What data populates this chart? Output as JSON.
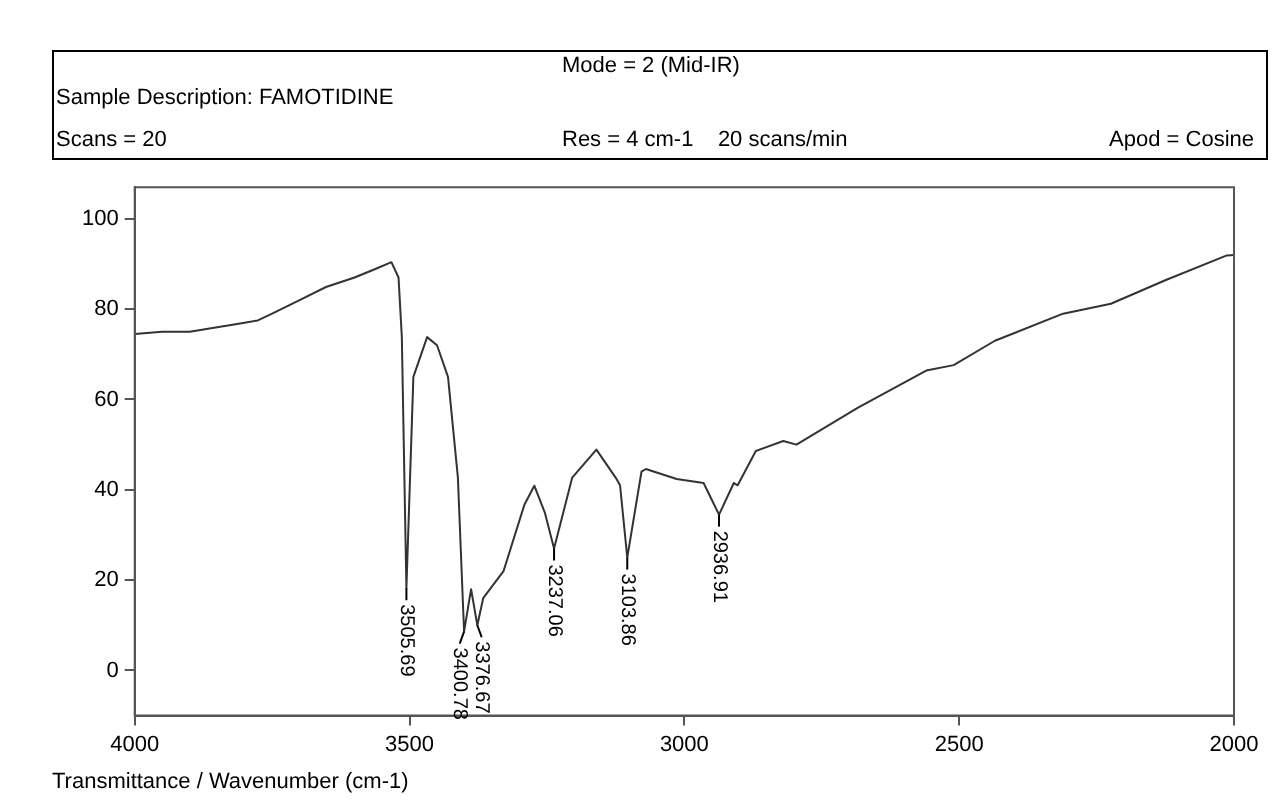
{
  "chart_data": {
    "type": "line",
    "title": "Mode = 2 (Mid-IR)",
    "xlabel": "Transmittance / Wavenumber (cm-1)",
    "annotations": [
      "Sample Description: FAMOTIDINE",
      "Scans = 20",
      "Res = 4 cm-1    20 scans/min",
      "Apod = Cosine",
      {
        "text": "3505.69",
        "x": 3505.69,
        "y": 18.2
      },
      {
        "text": "3400.78",
        "x": 3400.78,
        "y": 8.6
      },
      {
        "text": "3376.67",
        "x": 3376.67,
        "y": 10
      },
      {
        "text": "3237.06",
        "x": 3237.06,
        "y": 27
      },
      {
        "text": "3103.86",
        "x": 3103.86,
        "y": 25
      },
      {
        "text": "2936.91",
        "x": 2936.91,
        "y": 34.5
      }
    ],
    "x": [
      4000,
      3950,
      3900,
      3850,
      3800,
      3776,
      3750,
      3700,
      3652,
      3600,
      3560,
      3533,
      3520,
      3514,
      3505.69,
      3493,
      3468,
      3450,
      3430,
      3412,
      3400.78,
      3388,
      3376.67,
      3366,
      3329,
      3291,
      3273,
      3254,
      3237.06,
      3204,
      3160,
      3125,
      3117,
      3103.86,
      3078,
      3070,
      3014,
      2965,
      2936.91,
      2910,
      2903,
      2870,
      2820,
      2796,
      2684,
      2560,
      2510,
      2435,
      2311,
      2224,
      2125,
      2013,
      2000
    ],
    "values": [
      74.5,
      75,
      75,
      76,
      77,
      77.5,
      79,
      82,
      84.9,
      87,
      89,
      90.4,
      87,
      73.8,
      18.2,
      65,
      73.8,
      72,
      65,
      42.7,
      8.6,
      18,
      10,
      16,
      22,
      36.7,
      40.9,
      35,
      27,
      42.7,
      48.9,
      42.7,
      41,
      25,
      44,
      44.6,
      42.4,
      41.5,
      34.5,
      41.5,
      41,
      48.6,
      50.8,
      50,
      58.2,
      66.4,
      67.6,
      73,
      79,
      81.2,
      86.4,
      91.9,
      92
    ],
    "color": "#333333",
    "xlim": [
      4000,
      2000
    ],
    "ylim": [
      -10,
      107
    ],
    "xticks": [
      4000,
      3500,
      3000,
      2500,
      2000
    ],
    "yticks": [
      0,
      20,
      40,
      60,
      80,
      100
    ],
    "grid": false,
    "legend": false,
    "marker": "none",
    "line_style": "solid"
  }
}
